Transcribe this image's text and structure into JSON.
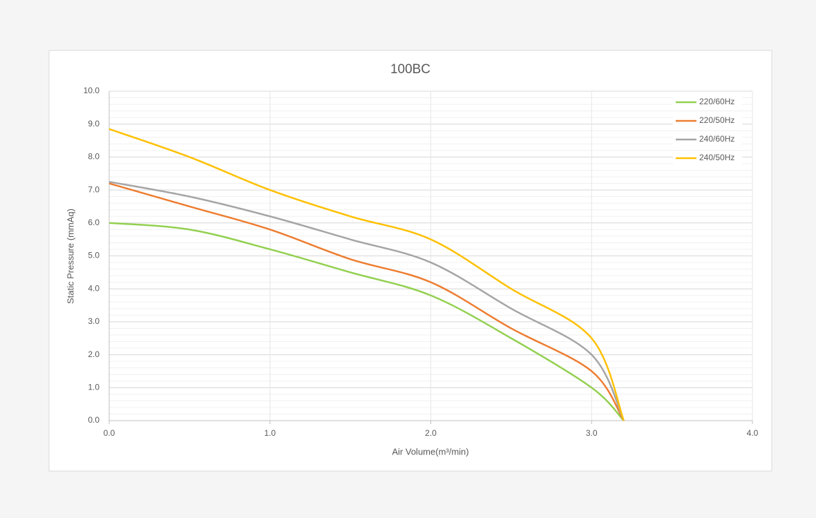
{
  "chart_data": {
    "type": "line",
    "title": "100BC",
    "x_label": "Air Volume(m³/min)",
    "y_label": "Static Pressure (mmAq)",
    "x": [
      0,
      0.5,
      1.0,
      1.5,
      2.0,
      2.5,
      3.0,
      3.2
    ],
    "series": [
      {
        "name": "220/60Hz",
        "color": "#92d050",
        "values": [
          6.0,
          5.8,
          5.2,
          4.5,
          3.8,
          2.5,
          1.0,
          0
        ]
      },
      {
        "name": "220/50Hz",
        "color": "#ed7d31",
        "values": [
          7.2,
          6.5,
          5.8,
          4.9,
          4.2,
          2.8,
          1.5,
          0
        ]
      },
      {
        "name": "240/60Hz",
        "color": "#a5a5a5",
        "values": [
          7.25,
          6.8,
          6.2,
          5.5,
          4.8,
          3.4,
          2.0,
          0
        ]
      },
      {
        "name": "240/50Hz",
        "color": "#ffc000",
        "values": [
          8.85,
          8.0,
          7.0,
          6.2,
          5.5,
          4.0,
          2.5,
          0
        ]
      }
    ],
    "xlim": [
      0,
      4
    ],
    "ylim": [
      0,
      10
    ],
    "xticks": [
      {
        "value": 0,
        "label": "0.0"
      },
      {
        "value": 1,
        "label": "1.0"
      },
      {
        "value": 2,
        "label": "2.0"
      },
      {
        "value": 3,
        "label": "3.0"
      },
      {
        "value": 4,
        "label": "4.0"
      }
    ],
    "yticks": [
      {
        "value": 0,
        "label": "0.0"
      },
      {
        "value": 1,
        "label": "1.0"
      },
      {
        "value": 2,
        "label": "2.0"
      },
      {
        "value": 3,
        "label": "3.0"
      },
      {
        "value": 4,
        "label": "4.0"
      },
      {
        "value": 5,
        "label": "5.0"
      },
      {
        "value": 6,
        "label": "6.0"
      },
      {
        "value": 7,
        "label": "7.0"
      },
      {
        "value": 8,
        "label": "8.0"
      },
      {
        "value": 9,
        "label": "9.0"
      },
      {
        "value": 10,
        "label": "10.0"
      }
    ],
    "grid": true,
    "minor_grid_step": 0.2,
    "legend": "top-right"
  }
}
